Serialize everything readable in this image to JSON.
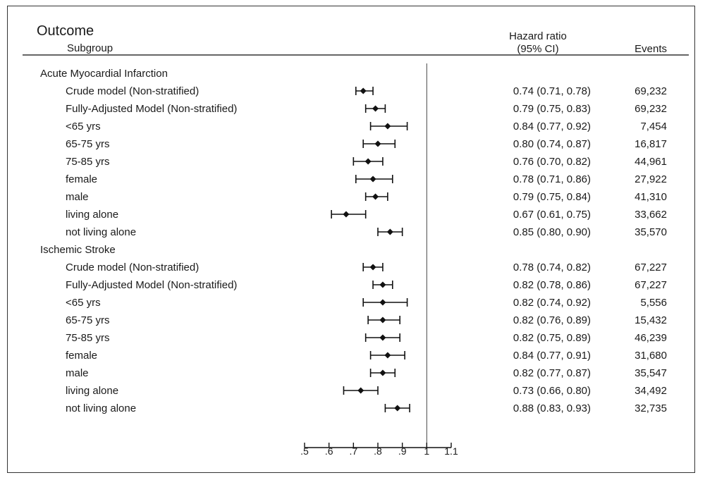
{
  "chart_data": {
    "type": "forest",
    "header": {
      "outcome": "Outcome",
      "subgroup": "Subgroup",
      "hr_line1": "Hazard ratio",
      "hr_line2": "(95% CI)",
      "events": "Events"
    },
    "x_axis": {
      "ticks": [
        0.5,
        0.6,
        0.7,
        0.8,
        0.9,
        1.0,
        1.1
      ],
      "tick_labels": [
        ".5",
        ".6",
        ".7",
        ".8",
        ".9",
        "1",
        "1.1"
      ],
      "xlim": [
        0.5,
        1.1
      ],
      "reference_line": 1.0
    },
    "groups": [
      {
        "title": "Acute Myocardial Infarction",
        "rows": [
          {
            "label": "Crude model (Non-stratified)",
            "hr": 0.74,
            "lo": 0.71,
            "hi": 0.78,
            "ci_text": "0.74 (0.71, 0.78)",
            "events": "69,232"
          },
          {
            "label": "Fully-Adjusted Model (Non-stratified)",
            "hr": 0.79,
            "lo": 0.75,
            "hi": 0.83,
            "ci_text": "0.79 (0.75, 0.83)",
            "events": "69,232"
          },
          {
            "label": "<65 yrs",
            "hr": 0.84,
            "lo": 0.77,
            "hi": 0.92,
            "ci_text": "0.84 (0.77, 0.92)",
            "events": "7,454"
          },
          {
            "label": "65-75 yrs",
            "hr": 0.8,
            "lo": 0.74,
            "hi": 0.87,
            "ci_text": "0.80 (0.74, 0.87)",
            "events": "16,817"
          },
          {
            "label": "75-85 yrs",
            "hr": 0.76,
            "lo": 0.7,
            "hi": 0.82,
            "ci_text": "0.76 (0.70, 0.82)",
            "events": "44,961"
          },
          {
            "label": "female",
            "hr": 0.78,
            "lo": 0.71,
            "hi": 0.86,
            "ci_text": "0.78 (0.71, 0.86)",
            "events": "27,922"
          },
          {
            "label": "male",
            "hr": 0.79,
            "lo": 0.75,
            "hi": 0.84,
            "ci_text": "0.79 (0.75, 0.84)",
            "events": "41,310"
          },
          {
            "label": "living alone",
            "hr": 0.67,
            "lo": 0.61,
            "hi": 0.75,
            "ci_text": "0.67 (0.61, 0.75)",
            "events": "33,662"
          },
          {
            "label": "not living alone",
            "hr": 0.85,
            "lo": 0.8,
            "hi": 0.9,
            "ci_text": "0.85 (0.80, 0.90)",
            "events": "35,570"
          }
        ]
      },
      {
        "title": "Ischemic Stroke",
        "rows": [
          {
            "label": "Crude model (Non-stratified)",
            "hr": 0.78,
            "lo": 0.74,
            "hi": 0.82,
            "ci_text": "0.78 (0.74, 0.82)",
            "events": "67,227"
          },
          {
            "label": "Fully-Adjusted Model (Non-stratified)",
            "hr": 0.82,
            "lo": 0.78,
            "hi": 0.86,
            "ci_text": "0.82 (0.78, 0.86)",
            "events": "67,227"
          },
          {
            "label": "<65 yrs",
            "hr": 0.82,
            "lo": 0.74,
            "hi": 0.92,
            "ci_text": "0.82 (0.74, 0.92)",
            "events": "5,556"
          },
          {
            "label": "65-75 yrs",
            "hr": 0.82,
            "lo": 0.76,
            "hi": 0.89,
            "ci_text": "0.82 (0.76, 0.89)",
            "events": "15,432"
          },
          {
            "label": "75-85 yrs",
            "hr": 0.82,
            "lo": 0.75,
            "hi": 0.89,
            "ci_text": "0.82 (0.75, 0.89)",
            "events": "46,239"
          },
          {
            "label": "female",
            "hr": 0.84,
            "lo": 0.77,
            "hi": 0.91,
            "ci_text": "0.84 (0.77, 0.91)",
            "events": "31,680"
          },
          {
            "label": "male",
            "hr": 0.82,
            "lo": 0.77,
            "hi": 0.87,
            "ci_text": "0.82 (0.77, 0.87)",
            "events": "35,547"
          },
          {
            "label": "living alone",
            "hr": 0.73,
            "lo": 0.66,
            "hi": 0.8,
            "ci_text": "0.73 (0.66, 0.80)",
            "events": "34,492"
          },
          {
            "label": "not living alone",
            "hr": 0.88,
            "lo": 0.83,
            "hi": 0.93,
            "ci_text": "0.88 (0.83, 0.93)",
            "events": "32,735"
          }
        ]
      }
    ]
  }
}
